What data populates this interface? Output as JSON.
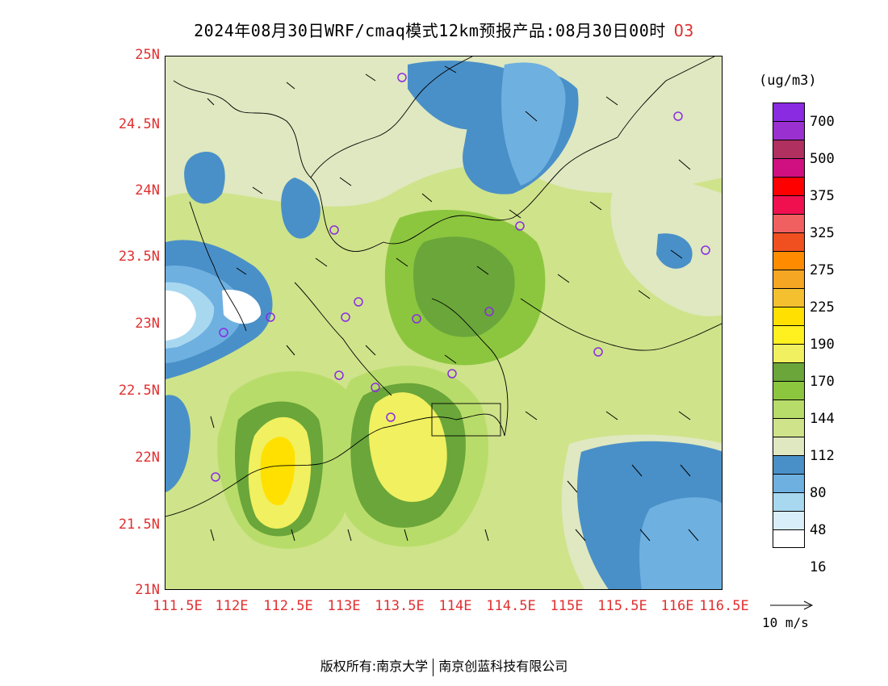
{
  "title": {
    "main": "2024年08月30日WRF/cmaq模式12km预报产品:08月30日00时",
    "species": "O3"
  },
  "axes": {
    "y_ticks": [
      "25N",
      "24.5N",
      "24N",
      "23.5N",
      "23N",
      "22.5N",
      "22N",
      "21.5N",
      "21N"
    ],
    "x_ticks": [
      "111.5E",
      "112E",
      "112.5E",
      "113E",
      "113.5E",
      "114E",
      "114.5E",
      "115E",
      "115.5E",
      "116E",
      "116.5E"
    ]
  },
  "legend": {
    "units": "(ug/m3)",
    "labels": [
      "700",
      "500",
      "375",
      "325",
      "275",
      "225",
      "190",
      "170",
      "144",
      "112",
      "80",
      "48",
      "16"
    ],
    "colors": [
      "#8a2be2",
      "#9b30d0",
      "#b03060",
      "#d01080",
      "#ff0000",
      "#f01050",
      "#f06060",
      "#f05020",
      "#ff8c00",
      "#f5a623",
      "#f5c030",
      "#ffe000",
      "#fff020",
      "#f0f060",
      "#6aa63a",
      "#8cc63f",
      "#b8dc6a",
      "#cfe38a",
      "#dfe8c0",
      "#4a90c8",
      "#6eb0e0",
      "#a8d8f0",
      "#d8eef8",
      "#ffffff"
    ]
  },
  "vector_reference": {
    "label": "10 m/s"
  },
  "footer": {
    "left": "版权所有:南京大学",
    "right": "南京创蓝科技有限公司"
  },
  "stations": 16
}
